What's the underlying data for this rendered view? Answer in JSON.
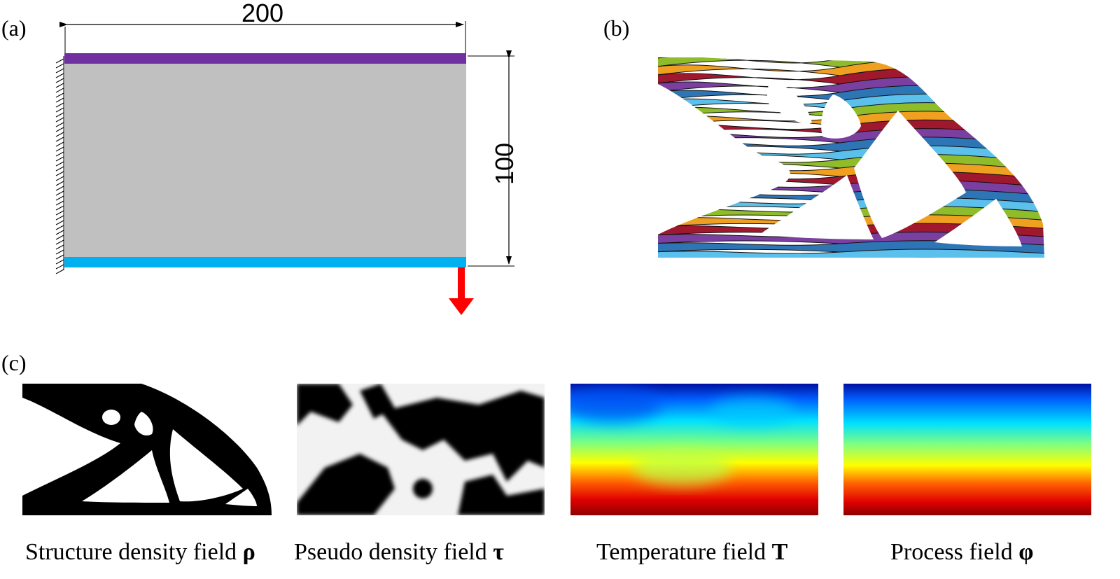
{
  "panels": {
    "a": {
      "label": "(a)",
      "width_dim": "200",
      "height_dim": "100"
    },
    "b": {
      "label": "(b)"
    },
    "c": {
      "label": "(c)"
    }
  },
  "fields": [
    {
      "caption": "Structure density field ",
      "symbol": "ρ"
    },
    {
      "caption": "Pseudo density field ",
      "symbol": "τ"
    },
    {
      "caption": "Temperature field ",
      "symbol": "T"
    },
    {
      "caption": "Process field ",
      "symbol": "φ"
    }
  ],
  "colors": {
    "domain_gray": "#c0c0c0",
    "top_bar": "#7030a0",
    "bottom_bar": "#00b0f0",
    "load_arrow": "#ff0000",
    "layer_palette": [
      "#2e75b6",
      "#5bc0eb",
      "#8fbc2b",
      "#f0a020",
      "#a0182e",
      "#7b3fa0"
    ]
  }
}
